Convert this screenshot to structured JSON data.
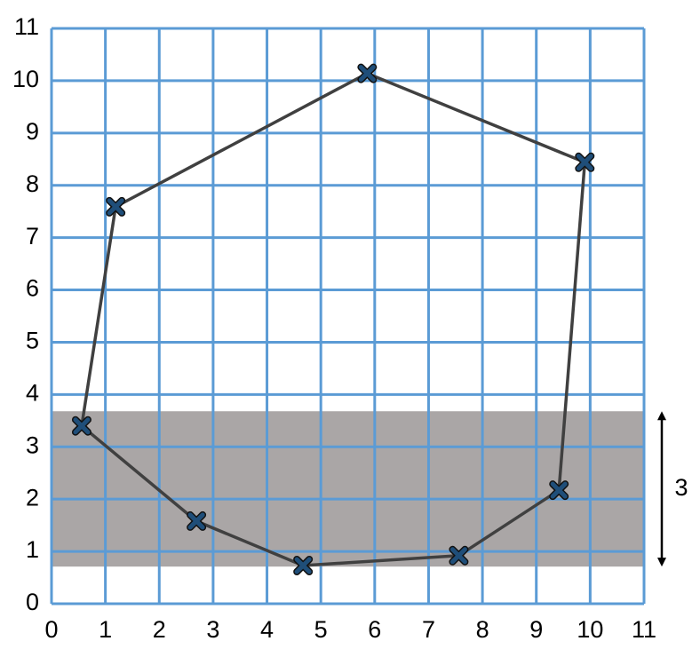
{
  "chart_data": {
    "type": "scatter",
    "closed": true,
    "x": [
      0.56,
      1.19,
      5.86,
      9.9,
      9.42,
      7.56,
      4.67,
      2.69
    ],
    "values": [
      3.4,
      7.59,
      10.14,
      8.44,
      2.17,
      0.92,
      0.73,
      1.58
    ],
    "color": "#1f4e79",
    "line_color": "#404040",
    "xlim": [
      0,
      11
    ],
    "ylim": [
      0,
      11
    ],
    "xticks": [
      0,
      1,
      2,
      3,
      4,
      5,
      6,
      7,
      8,
      9,
      10,
      11
    ],
    "yticks": [
      0,
      1,
      2,
      3,
      4,
      5,
      6,
      7,
      8,
      9,
      10,
      11
    ],
    "grid": true,
    "grid_color": "#5b9bd5",
    "band": {
      "y": [
        0.71,
        3.68
      ],
      "label": "3",
      "color": "#aaa6a6"
    }
  }
}
